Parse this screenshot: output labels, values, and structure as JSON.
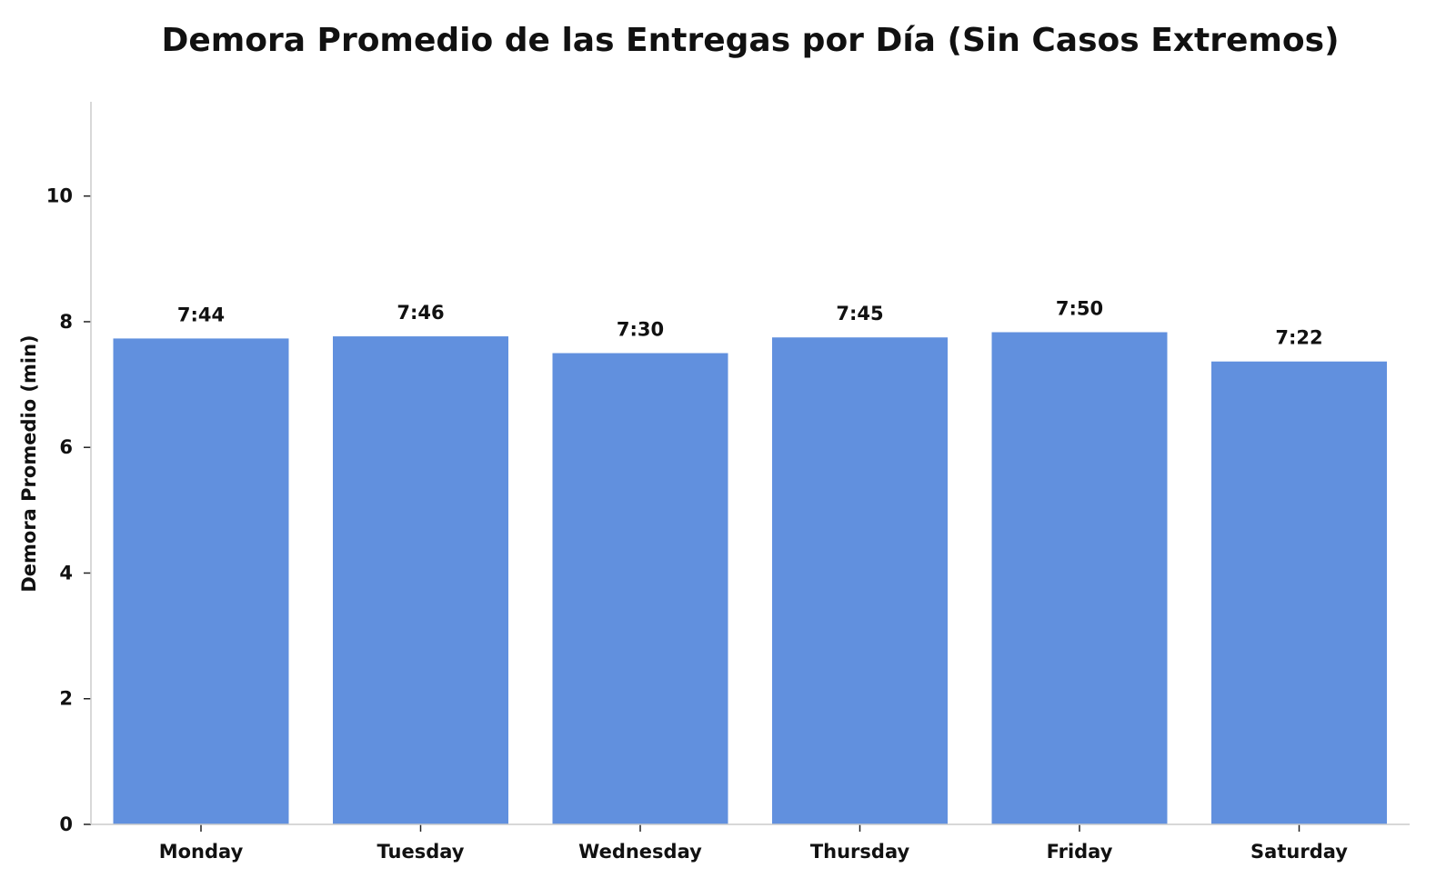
{
  "chart_data": {
    "type": "bar",
    "title": "Demora Promedio de las Entregas por Día (Sin Casos Extremos)",
    "xlabel": "",
    "ylabel": "Demora Promedio (min)",
    "categories": [
      "Monday",
      "Tuesday",
      "Wednesday",
      "Thursday",
      "Friday",
      "Saturday"
    ],
    "values": [
      7.733,
      7.767,
      7.5,
      7.75,
      7.833,
      7.367
    ],
    "data_labels": [
      "7:44",
      "7:46",
      "7:30",
      "7:45",
      "7:50",
      "7:22"
    ],
    "ylim": [
      0,
      11.5
    ],
    "yticks": [
      0,
      2,
      4,
      6,
      8,
      10
    ],
    "bar_color": "#6190de",
    "grid": false,
    "legend": "none"
  }
}
